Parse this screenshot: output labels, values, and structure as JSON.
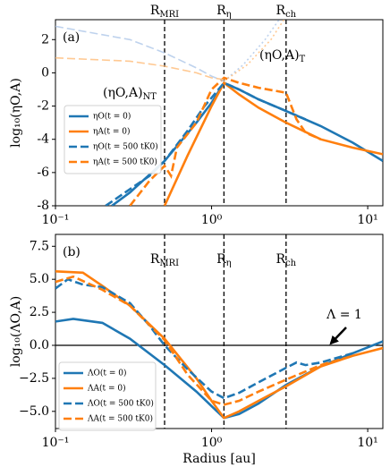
{
  "chart_data": [
    {
      "type": "line",
      "panel_label": "(a)",
      "xscale": "log",
      "xlim": [
        0.1,
        12.5
      ],
      "ylim": [
        -8,
        3.2
      ],
      "xticks": [
        {
          "value": 0.1,
          "label": "10⁻¹"
        },
        {
          "value": 1,
          "label": "10⁰"
        },
        {
          "value": 10,
          "label": "10¹"
        }
      ],
      "yticks": [
        -8,
        -6,
        -4,
        -2,
        0,
        2
      ],
      "ylabel": "log₁₀(ηO,A)",
      "vlines": [
        {
          "x": 0.5,
          "label": "R",
          "sub": "MRI"
        },
        {
          "x": 1.2,
          "label": "R",
          "sub": "η"
        },
        {
          "x": 3.0,
          "label": "R",
          "sub": "ch"
        }
      ],
      "annotations": [
        {
          "text": "(ηO,A)",
          "sub": "NT"
        },
        {
          "text": "(ηO,A)",
          "sub": "T"
        }
      ],
      "series": [
        {
          "name": "ηO(t = 0)",
          "color": "#1f77b4",
          "dash": "solid",
          "x": [
            0.23,
            0.3,
            0.5,
            0.8,
            1.0,
            1.2,
            1.5,
            2,
            3,
            5,
            8,
            12.5
          ],
          "values": [
            -8,
            -7.2,
            -5.3,
            -3,
            -1.8,
            -0.6,
            -1,
            -1.6,
            -2.3,
            -3.2,
            -4.2,
            -5.3
          ]
        },
        {
          "name": "ηA(t = 0)",
          "color": "#ff7f0e",
          "dash": "solid",
          "x": [
            0.5,
            0.7,
            1.0,
            1.2,
            1.5,
            2,
            3,
            5,
            8,
            12.5
          ],
          "values": [
            -8,
            -5,
            -2,
            -0.6,
            -1.3,
            -2.1,
            -3,
            -4,
            -4.5,
            -4.9
          ]
        },
        {
          "name": "ηO(t = 500 tK0)",
          "color": "#1f77b4",
          "dash": "dashed",
          "x": [
            0.21,
            0.3,
            0.4,
            0.5,
            0.7,
            0.9,
            1.0,
            1.2,
            1.5,
            2,
            3,
            4
          ],
          "values": [
            -8,
            -7,
            -6.2,
            -5.3,
            -3.5,
            -2,
            -1.5,
            -0.6,
            -1,
            -1.6,
            -2.3,
            -2.8
          ]
        },
        {
          "name": "ηA(t = 500 tK0)",
          "color": "#ff7f0e",
          "dash": "dashed",
          "x": [
            0.3,
            0.4,
            0.5,
            0.55,
            0.6,
            0.8,
            1.0,
            1.2,
            1.5,
            2,
            3,
            3.5,
            4,
            5
          ],
          "values": [
            -8,
            -6.5,
            -5.6,
            -6.2,
            -4.5,
            -3,
            -1,
            -0.3,
            -0.6,
            -0.9,
            -1.2,
            -2.8,
            -3.6,
            -4
          ]
        },
        {
          "color": "#aec7e8",
          "dash": "dashed",
          "x": [
            0.1,
            0.3,
            0.5,
            0.8,
            1.0,
            1.2
          ],
          "values": [
            2.8,
            2,
            1.2,
            0.3,
            -0.2,
            -0.5
          ]
        },
        {
          "color": "#ffbb78",
          "dash": "dashed",
          "x": [
            0.1,
            0.3,
            0.5,
            0.8,
            1.0,
            1.2
          ],
          "values": [
            0.9,
            0.7,
            0.4,
            0,
            -0.3,
            -0.4
          ]
        },
        {
          "color": "#aec7e8",
          "dash": "dotted",
          "x": [
            1.2,
            1.6,
            2.2,
            2.8
          ],
          "values": [
            -0.5,
            0.5,
            2,
            3.4
          ]
        },
        {
          "color": "#ffbb78",
          "dash": "dotted",
          "x": [
            1.2,
            1.7,
            2.4,
            3.0
          ],
          "values": [
            -0.5,
            0.5,
            2,
            3.4
          ]
        }
      ]
    },
    {
      "type": "line",
      "panel_label": "(b)",
      "xscale": "log",
      "xlim": [
        0.1,
        12.5
      ],
      "ylim": [
        -6.3,
        8.4
      ],
      "xticks": [
        {
          "value": 0.1,
          "label": "10⁻¹"
        },
        {
          "value": 1,
          "label": "10⁰"
        },
        {
          "value": 10,
          "label": "10¹"
        }
      ],
      "yticks": [
        -5.0,
        -2.5,
        0.0,
        2.5,
        5.0,
        7.5
      ],
      "ytick_labels": [
        "−5.0",
        "−2.5",
        "0.0",
        "2.5",
        "5.0",
        "7.5"
      ],
      "xlabel": "Radius [au]",
      "ylabel": "log₁₀(ΛO,A)",
      "hline": 0,
      "vlines": [
        {
          "x": 0.5,
          "label": "R",
          "sub": "MRI"
        },
        {
          "x": 1.2,
          "label": "R",
          "sub": "η"
        },
        {
          "x": 3.0,
          "label": "R",
          "sub": "ch"
        }
      ],
      "annotations": [
        {
          "text": "Λ = 1"
        }
      ],
      "series": [
        {
          "name": "ΛO(t = 0)",
          "color": "#1f77b4",
          "dash": "solid",
          "x": [
            0.1,
            0.13,
            0.2,
            0.3,
            0.5,
            0.8,
            1.0,
            1.2,
            1.5,
            2,
            3,
            5,
            8,
            12.5
          ],
          "values": [
            1.8,
            2,
            1.7,
            0.5,
            -1.5,
            -3.5,
            -4.6,
            -5.5,
            -5.2,
            -4.4,
            -3,
            -1.6,
            -0.6,
            0.3
          ]
        },
        {
          "name": "ΛA(t = 0)",
          "color": "#ff7f0e",
          "dash": "solid",
          "x": [
            0.1,
            0.15,
            0.2,
            0.3,
            0.5,
            0.8,
            1.0,
            1.2,
            1.5,
            2,
            3,
            5,
            8,
            12.5
          ],
          "values": [
            5.6,
            5.5,
            4.5,
            3,
            0.5,
            -2.5,
            -4.2,
            -5.5,
            -5,
            -4.2,
            -3.1,
            -1.6,
            -0.8,
            -0.2
          ]
        },
        {
          "name": "ΛO(t = 500 tK0)",
          "color": "#1f77b4",
          "dash": "dashed",
          "x": [
            0.1,
            0.12,
            0.15,
            0.2,
            0.3,
            0.4,
            0.5,
            0.7,
            1.0,
            1.2,
            1.5,
            2,
            3,
            3.5,
            4,
            5,
            8
          ],
          "values": [
            4.3,
            5,
            4.6,
            4.4,
            3.2,
            1.5,
            0,
            -1.8,
            -3.5,
            -4,
            -3.6,
            -2.8,
            -1.7,
            -1.3,
            -1.5,
            -1.3,
            -0.6
          ]
        },
        {
          "name": "ΛA(t = 500 tK0)",
          "color": "#ff7f0e",
          "dash": "dashed",
          "x": [
            0.1,
            0.13,
            0.2,
            0.3,
            0.5,
            0.7,
            1.0,
            1.2,
            1.5,
            2,
            3,
            5,
            8
          ],
          "values": [
            4.8,
            5.2,
            4.2,
            3,
            0.4,
            -2.2,
            -4.2,
            -4.5,
            -4.2,
            -3.5,
            -2.6,
            -1.5,
            -0.8
          ]
        }
      ]
    }
  ]
}
